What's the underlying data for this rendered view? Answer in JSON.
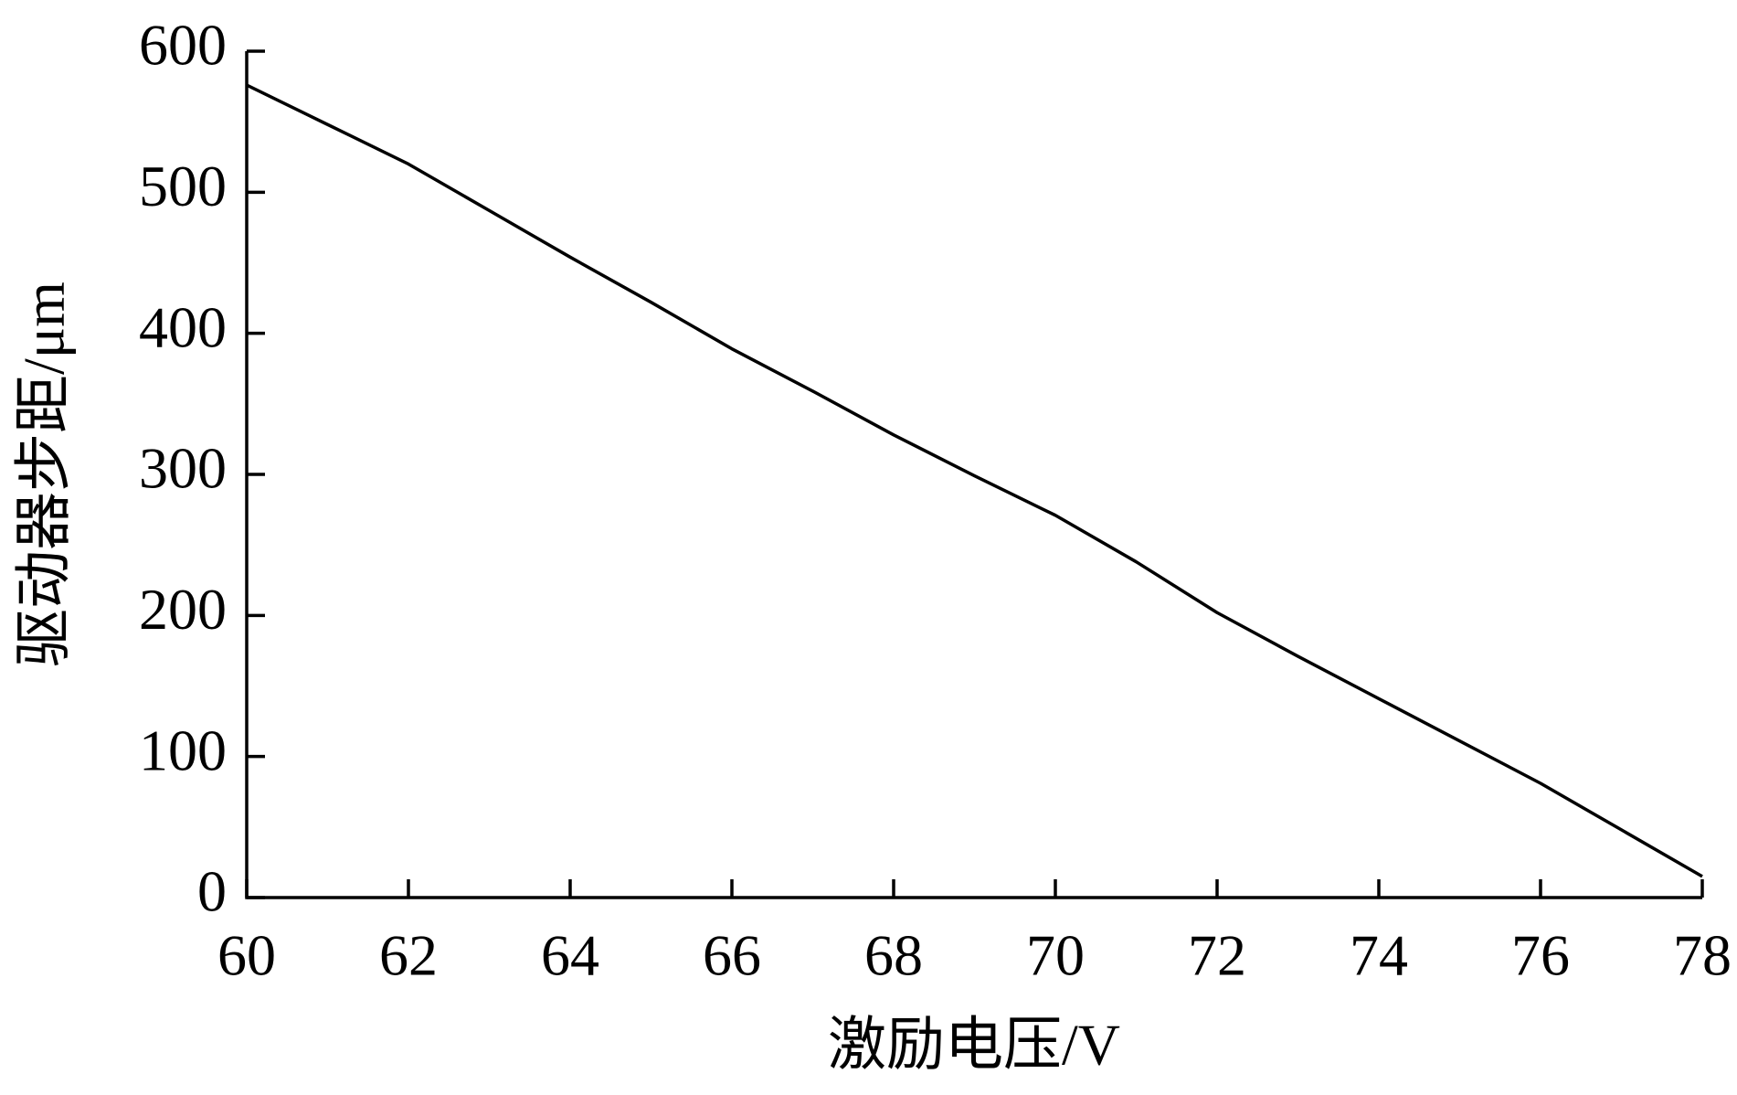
{
  "chart_data": {
    "type": "line",
    "xlabel": "激励电压/V",
    "ylabel": "驱动器步距/μm",
    "x": [
      60,
      61,
      62,
      63,
      64,
      65,
      66,
      67,
      68,
      69,
      70,
      71,
      72,
      73,
      74,
      75,
      76,
      77,
      78
    ],
    "series": [
      {
        "color": "#000000",
        "values": [
          576,
          548,
          520,
          487,
          454,
          422,
          389,
          359,
          328,
          299,
          271,
          238,
          202,
          171,
          141,
          111,
          81,
          48,
          15
        ]
      }
    ],
    "xlim": [
      60,
      78
    ],
    "xticks": [
      60,
      62,
      64,
      66,
      68,
      70,
      72,
      74,
      76,
      78
    ],
    "ylim": [
      0,
      600
    ],
    "yticks": [
      0,
      100,
      200,
      300,
      400,
      500,
      600
    ]
  }
}
